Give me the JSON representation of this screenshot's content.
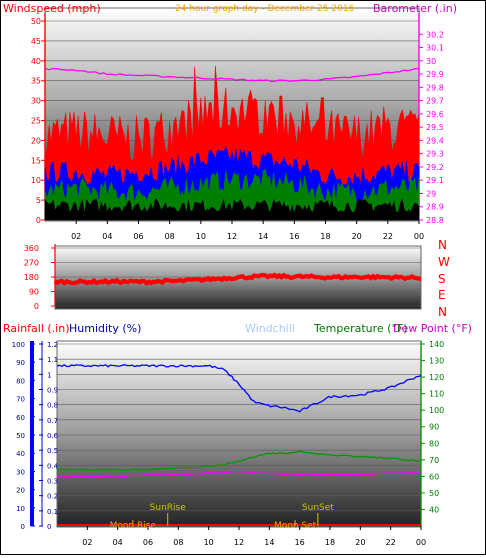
{
  "header": {
    "windspeed_label": "Windspeed (mph)",
    "date_title": "24 hour graph day - December 25 2016",
    "barometer_label": "Barometer (.in)"
  },
  "lower_header": {
    "rainfall_label": "Rainfall (.in)",
    "humidity_label": "Humidity (%)",
    "windchill_label": "Windchill",
    "temperature_label": "Temperature (°F)",
    "dewpoint_label": "Dew Point (°F)"
  },
  "compass_labels": [
    "N",
    "W",
    "S",
    "E",
    "N"
  ],
  "x_ticks": [
    "02",
    "04",
    "06",
    "08",
    "10",
    "12",
    "14",
    "16",
    "18",
    "20",
    "22",
    "00"
  ],
  "colors": {
    "wind_gust": "#ff0000",
    "wind_avg": "#0000ff",
    "wind_low": "#008000",
    "barometer": "#ff00ff",
    "direction": "#ff0000",
    "humidity": "#0000ff",
    "temperature": "#009900",
    "dewpoint": "#ff00ff",
    "windchill": "#aac8ff",
    "sun": "#c8c800",
    "moon": "#ffa000",
    "axis_red": "#ff0000"
  },
  "chart_data": [
    {
      "type": "area",
      "panel": "wind-barometer",
      "xlabel": "",
      "x_ticks": [
        "02",
        "04",
        "06",
        "08",
        "10",
        "12",
        "14",
        "16",
        "18",
        "20",
        "22",
        "00"
      ],
      "left_axis": {
        "label": "Windspeed (mph)",
        "ylim": [
          0,
          50
        ],
        "ticks": [
          "0",
          "5",
          "10",
          "15",
          "20",
          "25",
          "30",
          "35",
          "40",
          "45",
          "50"
        ]
      },
      "right_axis": {
        "label": "Barometer (.in)",
        "ylim": [
          28.8,
          30.3
        ],
        "ticks": [
          "28.8",
          "28.9",
          "29",
          "29.1",
          "29.2",
          "29.3",
          "29.4",
          "29.5",
          "29.6",
          "29.7",
          "29.8",
          "29.9",
          "30",
          "30.1",
          "30.2"
        ]
      },
      "x": [
        0,
        2,
        4,
        6,
        8,
        10,
        12,
        14,
        16,
        18,
        20,
        22,
        24
      ],
      "series": [
        {
          "name": "gust",
          "axis": "left",
          "values": [
            21,
            22,
            21,
            20,
            23,
            26,
            28,
            27,
            25,
            22,
            21,
            23,
            22
          ]
        },
        {
          "name": "average",
          "axis": "left",
          "values": [
            12,
            12,
            11,
            12,
            13,
            15,
            16,
            15,
            14,
            11,
            11,
            12,
            12
          ]
        },
        {
          "name": "low",
          "axis": "left",
          "values": [
            7,
            8,
            7,
            7,
            8,
            9,
            10,
            10,
            9,
            7,
            7,
            8,
            8
          ]
        },
        {
          "name": "barometer",
          "axis": "right",
          "values": [
            29.94,
            29.93,
            29.9,
            29.89,
            29.88,
            29.87,
            29.86,
            29.85,
            29.85,
            29.86,
            29.88,
            29.91,
            29.94
          ]
        }
      ]
    },
    {
      "type": "line",
      "panel": "wind-direction",
      "ylim": [
        0,
        360
      ],
      "y_ticks": [
        "0",
        "90",
        "180",
        "270",
        "360"
      ],
      "x": [
        0,
        2,
        4,
        6,
        8,
        10,
        12,
        14,
        16,
        18,
        20,
        22,
        24
      ],
      "series": [
        {
          "name": "direction",
          "values": [
            150,
            150,
            152,
            150,
            155,
            165,
            178,
            185,
            182,
            178,
            180,
            178,
            175
          ]
        }
      ]
    },
    {
      "type": "line",
      "panel": "rain-humidity-temperature",
      "x_ticks": [
        "02",
        "04",
        "06",
        "08",
        "10",
        "12",
        "14",
        "16",
        "18",
        "20",
        "22",
        "00"
      ],
      "rain_axis": {
        "ylim": [
          0,
          1.2
        ],
        "ticks": [
          "0",
          "0.1",
          "0.2",
          "0.3",
          "0.4",
          "0.5",
          "0.6",
          "0.7",
          "0.8",
          "0.9",
          "1",
          "1.1",
          "1.2"
        ]
      },
      "humidity_axis": {
        "ylim": [
          0,
          100
        ],
        "ticks": [
          "0",
          "10",
          "20",
          "30",
          "40",
          "50",
          "60",
          "70",
          "80",
          "90",
          "100"
        ]
      },
      "temperature_axis": {
        "ylim": [
          30,
          140
        ],
        "ticks": [
          "40",
          "50",
          "60",
          "70",
          "80",
          "90",
          "100",
          "110",
          "120",
          "130",
          "140"
        ]
      },
      "x": [
        0,
        2,
        4,
        6,
        8,
        10,
        11,
        12,
        13,
        14,
        15,
        16,
        18,
        20,
        22,
        24
      ],
      "series": [
        {
          "name": "humidity",
          "axis": "humidity",
          "values": [
            88,
            88,
            88,
            88,
            88,
            88,
            86,
            78,
            68,
            66,
            65,
            63,
            71,
            72,
            76,
            83
          ]
        },
        {
          "name": "temperature",
          "axis": "temperature",
          "values": [
            64,
            64,
            64,
            64,
            65,
            66,
            67,
            69,
            72,
            74,
            74,
            75,
            73,
            72,
            71,
            69
          ]
        },
        {
          "name": "dewpoint",
          "axis": "temperature",
          "values": [
            60,
            60,
            60,
            61,
            61,
            62,
            62,
            63,
            62,
            62,
            61,
            61,
            61,
            61,
            62,
            62
          ]
        },
        {
          "name": "rainfall",
          "axis": "rain",
          "values": [
            0,
            0,
            0,
            0,
            0,
            0,
            0,
            0,
            0,
            0,
            0,
            0,
            0,
            0,
            0,
            0
          ]
        }
      ],
      "events": [
        {
          "label": "SunRise",
          "hour": 7.3
        },
        {
          "label": "SunSet",
          "hour": 17.2
        },
        {
          "label": "Moon Rise",
          "hour": 5.0
        },
        {
          "label": "Moon Set",
          "hour": 15.7
        }
      ]
    }
  ]
}
